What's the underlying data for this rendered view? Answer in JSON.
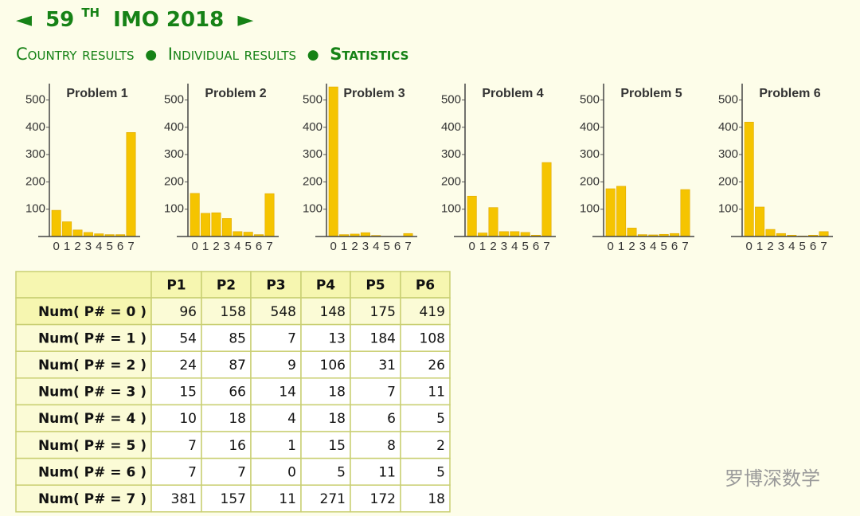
{
  "header": {
    "prev": "◄",
    "edition": "59",
    "edition_sup": "TH",
    "title": "IMO 2018",
    "next": "►",
    "nav": [
      "Country results",
      "Individual results",
      "Statistics"
    ],
    "separator": "●"
  },
  "chart_data": [
    {
      "type": "bar",
      "title": "Problem 1",
      "categories": [
        "0",
        "1",
        "2",
        "3",
        "4",
        "5",
        "6",
        "7"
      ],
      "values": [
        96,
        54,
        24,
        15,
        10,
        7,
        7,
        381
      ],
      "color": "#f5c400",
      "ylim": [
        0,
        560
      ],
      "yticks": [
        100,
        200,
        300,
        400,
        500
      ]
    },
    {
      "type": "bar",
      "title": "Problem 2",
      "categories": [
        "0",
        "1",
        "2",
        "3",
        "4",
        "5",
        "6",
        "7"
      ],
      "values": [
        158,
        85,
        87,
        66,
        18,
        16,
        7,
        157
      ],
      "color": "#f5c400",
      "ylim": [
        0,
        560
      ],
      "yticks": [
        100,
        200,
        300,
        400,
        500
      ]
    },
    {
      "type": "bar",
      "title": "Problem 3",
      "categories": [
        "0",
        "1",
        "2",
        "3",
        "4",
        "5",
        "6",
        "7"
      ],
      "values": [
        548,
        7,
        9,
        14,
        4,
        1,
        0,
        11
      ],
      "color": "#f5c400",
      "ylim": [
        0,
        560
      ],
      "yticks": [
        100,
        200,
        300,
        400,
        500
      ]
    },
    {
      "type": "bar",
      "title": "Problem 4",
      "categories": [
        "0",
        "1",
        "2",
        "3",
        "4",
        "5",
        "6",
        "7"
      ],
      "values": [
        148,
        13,
        106,
        18,
        18,
        15,
        5,
        271
      ],
      "color": "#f5c400",
      "ylim": [
        0,
        560
      ],
      "yticks": [
        100,
        200,
        300,
        400,
        500
      ]
    },
    {
      "type": "bar",
      "title": "Problem 5",
      "categories": [
        "0",
        "1",
        "2",
        "3",
        "4",
        "5",
        "6",
        "7"
      ],
      "values": [
        175,
        184,
        31,
        7,
        6,
        8,
        11,
        172
      ],
      "color": "#f5c400",
      "ylim": [
        0,
        560
      ],
      "yticks": [
        100,
        200,
        300,
        400,
        500
      ]
    },
    {
      "type": "bar",
      "title": "Problem 6",
      "categories": [
        "0",
        "1",
        "2",
        "3",
        "4",
        "5",
        "6",
        "7"
      ],
      "values": [
        419,
        108,
        26,
        11,
        5,
        2,
        5,
        18
      ],
      "color": "#f5c400",
      "ylim": [
        0,
        560
      ],
      "yticks": [
        100,
        200,
        300,
        400,
        500
      ]
    }
  ],
  "table": {
    "columns": [
      "P1",
      "P2",
      "P3",
      "P4",
      "P5",
      "P6"
    ],
    "rows": [
      {
        "label": "Num( P# = 0 )",
        "values": [
          96,
          158,
          548,
          148,
          175,
          419
        ]
      },
      {
        "label": "Num( P# = 1 )",
        "values": [
          54,
          85,
          7,
          13,
          184,
          108
        ]
      },
      {
        "label": "Num( P# = 2 )",
        "values": [
          24,
          87,
          9,
          106,
          31,
          26
        ]
      },
      {
        "label": "Num( P# = 3 )",
        "values": [
          15,
          66,
          14,
          18,
          7,
          11
        ]
      },
      {
        "label": "Num( P# = 4 )",
        "values": [
          10,
          18,
          4,
          18,
          6,
          5
        ]
      },
      {
        "label": "Num( P# = 5 )",
        "values": [
          7,
          16,
          1,
          15,
          8,
          2
        ]
      },
      {
        "label": "Num( P# = 6 )",
        "values": [
          7,
          7,
          0,
          5,
          11,
          5
        ]
      },
      {
        "label": "Num( P# = 7 )",
        "values": [
          381,
          157,
          11,
          271,
          172,
          18
        ]
      }
    ]
  },
  "watermark": "罗博深数学"
}
